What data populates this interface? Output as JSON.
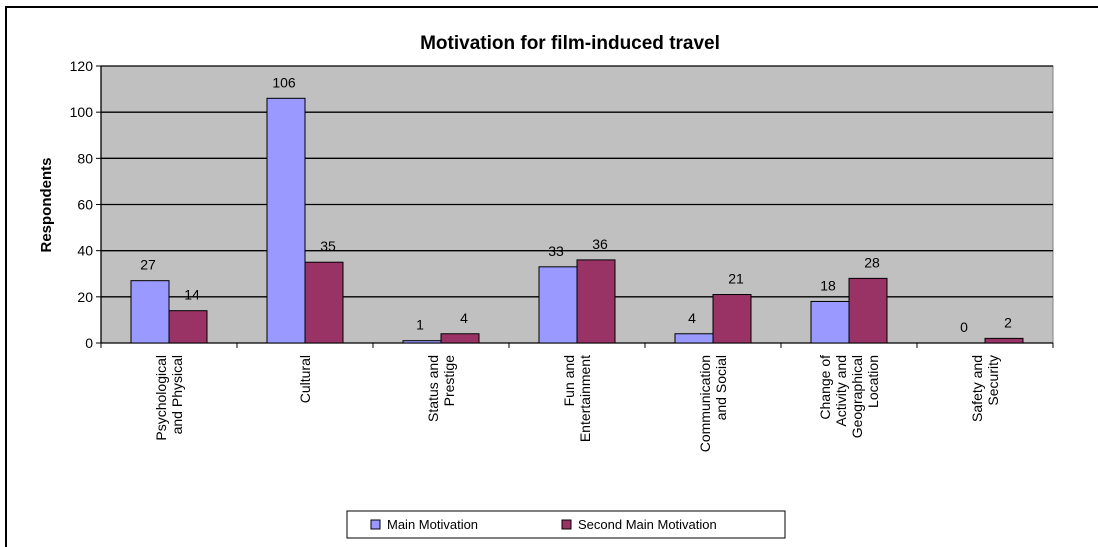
{
  "chart_data": {
    "type": "bar",
    "title": "Motivation for film-induced travel",
    "xlabel": "",
    "ylabel": "Respondents",
    "ylim": [
      0,
      120
    ],
    "yticks": [
      0,
      20,
      40,
      60,
      80,
      100,
      120
    ],
    "grid": true,
    "legend_position": "bottom",
    "categories": [
      [
        "Psychological",
        "and Physical"
      ],
      [
        "Cultural"
      ],
      [
        "Status and",
        "Prestige"
      ],
      [
        "Fun and",
        "Entertainment"
      ],
      [
        "Communication",
        "and Social"
      ],
      [
        "Change of",
        "Activity and",
        "Geographical",
        "Location"
      ],
      [
        "Safety and",
        "Security"
      ]
    ],
    "series": [
      {
        "name": "Main Motivation",
        "color": "#9999ff",
        "values": [
          27,
          106,
          1,
          33,
          4,
          18,
          0
        ]
      },
      {
        "name": "Second Main Motivation",
        "color": "#993366",
        "values": [
          14,
          35,
          4,
          36,
          21,
          28,
          2
        ]
      }
    ],
    "plot_background": "#c0c0c0"
  }
}
